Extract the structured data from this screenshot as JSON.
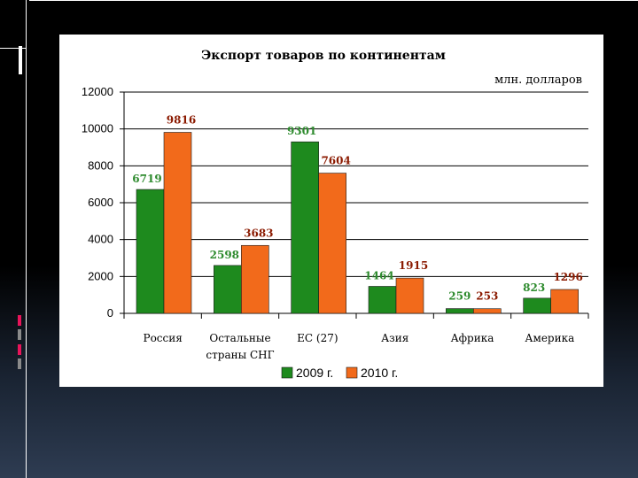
{
  "colors": {
    "series_2009": "#1e8a1e",
    "series_2010": "#f26a1b",
    "label_2009": "#2e8b2e",
    "label_2010": "#8b1a00",
    "accent_red": "#e8145a",
    "accent_gray": "#8a8a8a"
  },
  "chart_data": {
    "type": "bar",
    "title": "Экспорт товаров по континентам",
    "unit_label": "млн. долларов",
    "categories": [
      "Россия",
      "Остальные страны СНГ",
      "ЕС (27)",
      "Азия",
      "Африка",
      "Америка"
    ],
    "category_lines": [
      [
        "Россия"
      ],
      [
        "Остальные",
        "страны СНГ"
      ],
      [
        "ЕС (27)"
      ],
      [
        "Азия"
      ],
      [
        "Африка"
      ],
      [
        "Америка"
      ]
    ],
    "series": [
      {
        "name": "2009 г.",
        "values": [
          6719,
          2598,
          9301,
          1464,
          259,
          823
        ]
      },
      {
        "name": "2010 г.",
        "values": [
          9816,
          3683,
          7604,
          1915,
          253,
          1296
        ]
      }
    ],
    "ylim": [
      0,
      12000
    ],
    "yticks": [
      "0",
      "2000",
      "4000",
      "6000",
      "8000",
      "10000",
      "12000"
    ],
    "grid": true,
    "legend": "bottom"
  }
}
